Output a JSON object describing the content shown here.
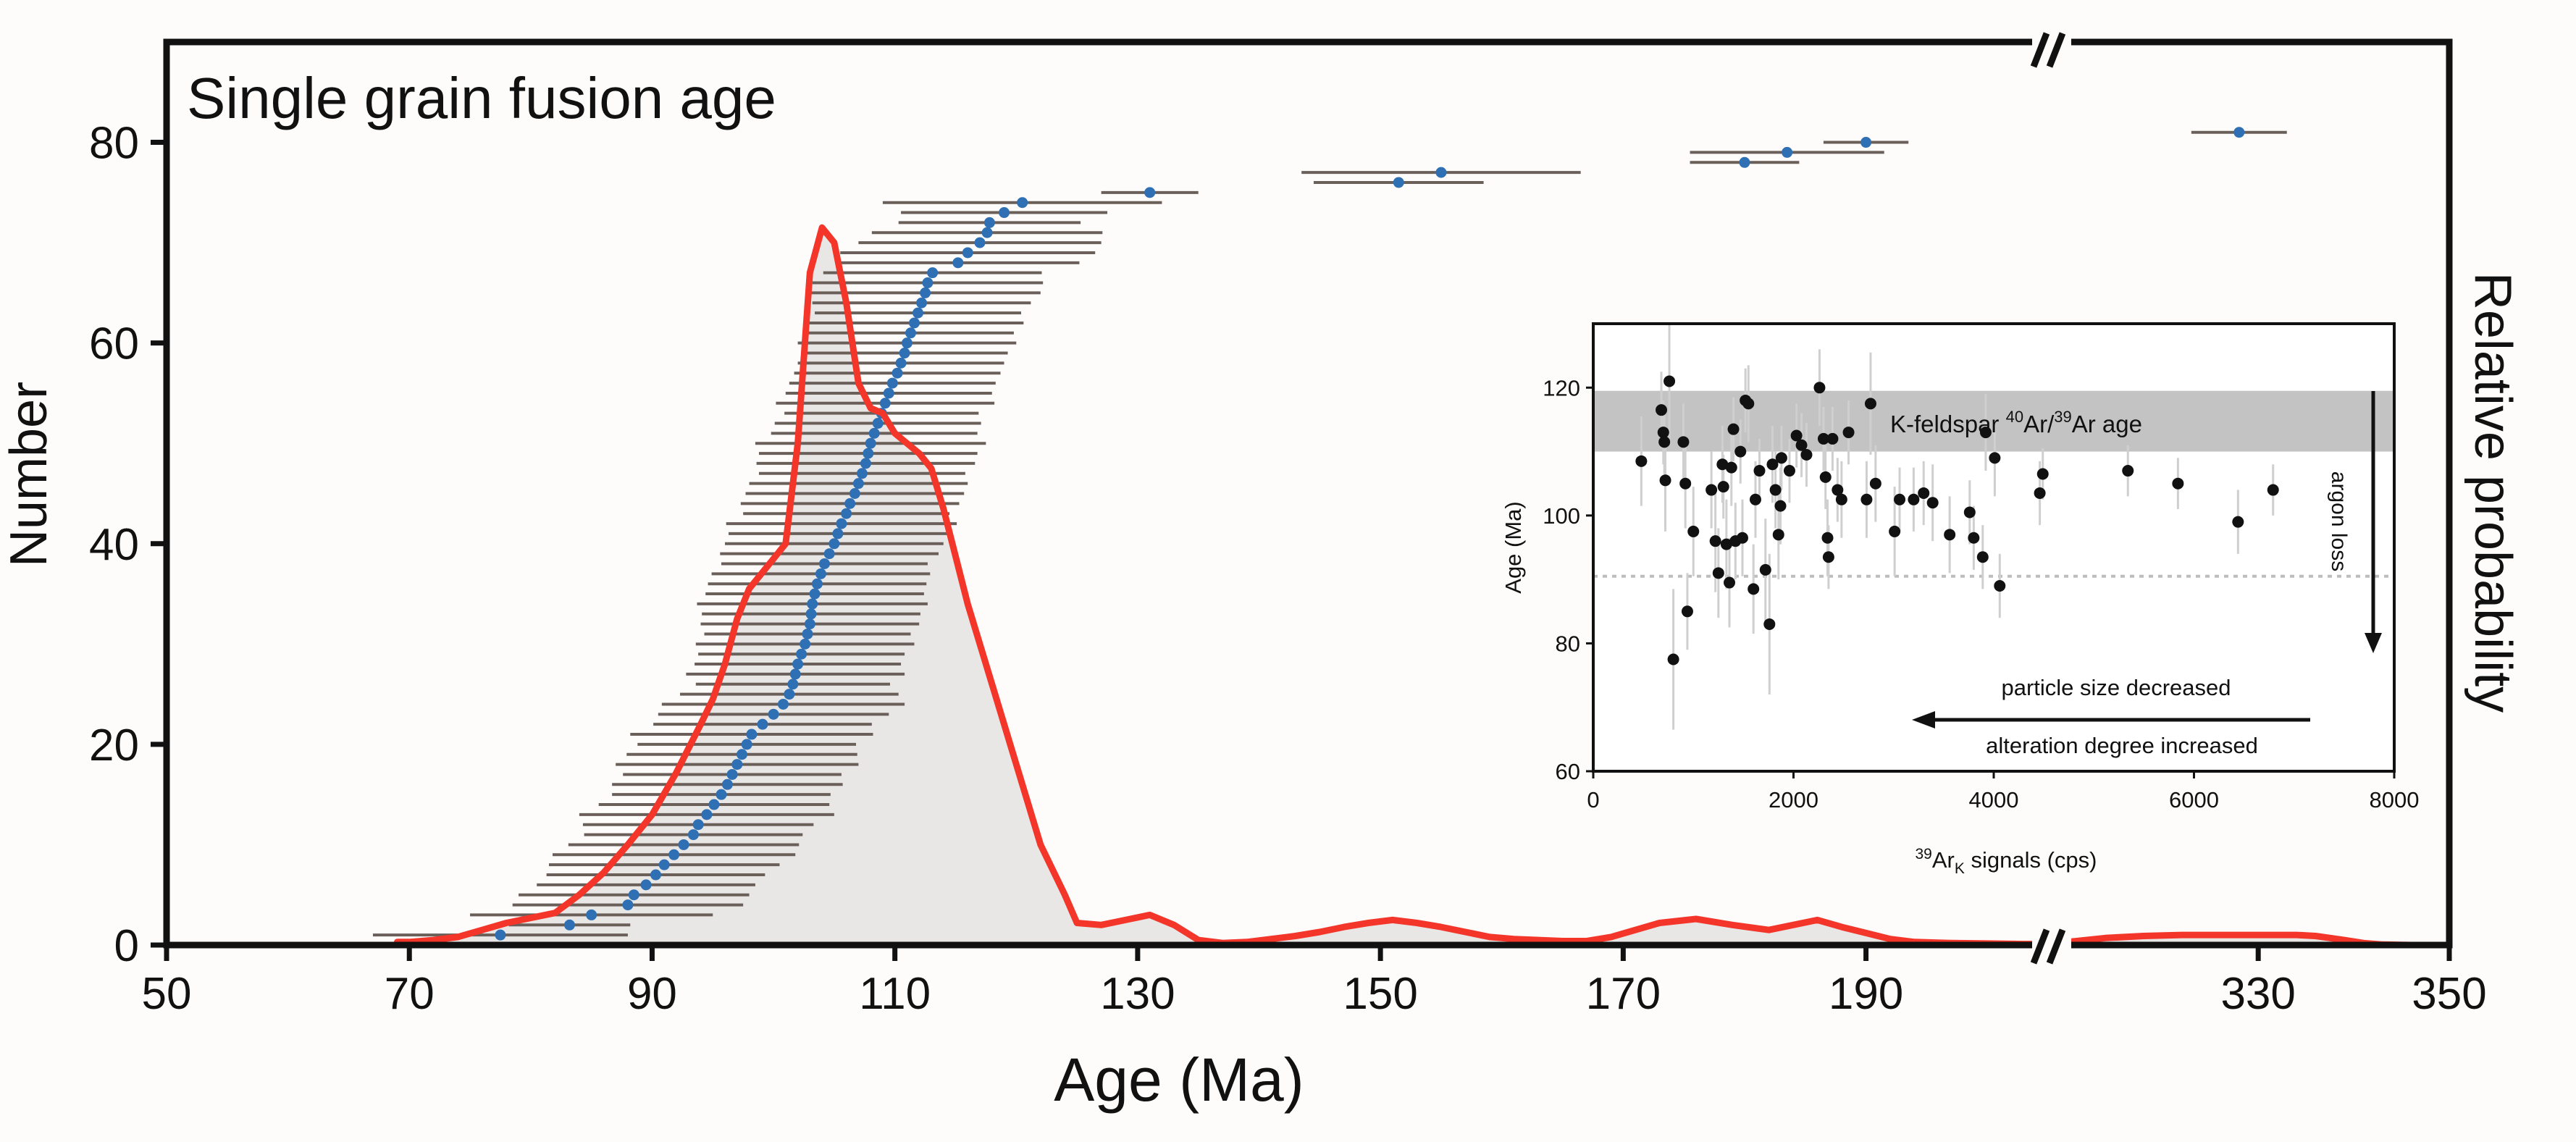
{
  "chart_data": [
    {
      "type": "scatter",
      "title": "Single grain fusion age",
      "xlabel": "Age (Ma)",
      "ylabel": "Number",
      "y2label": "Relative probability",
      "xlim_segments": [
        [
          50,
          205
        ],
        [
          308,
          350
        ]
      ],
      "axis_break_at": 205,
      "ylim": [
        0,
        90
      ],
      "xticks": [
        50,
        70,
        90,
        110,
        130,
        150,
        170,
        190,
        330,
        350
      ],
      "yticks": [
        0,
        20,
        40,
        60,
        80
      ],
      "points_age": [
        77.5,
        83.2,
        85.0,
        88.0,
        88.5,
        89.5,
        90.3,
        91.0,
        91.8,
        92.6,
        93.4,
        93.8,
        94.5,
        95.1,
        95.7,
        96.2,
        96.6,
        97.0,
        97.4,
        97.8,
        98.2,
        99.1,
        100.0,
        100.8,
        101.3,
        101.6,
        101.8,
        102.0,
        102.3,
        102.6,
        102.8,
        103.0,
        103.1,
        103.2,
        103.4,
        103.6,
        103.9,
        104.2,
        104.6,
        105.0,
        105.3,
        105.6,
        106.0,
        106.3,
        106.7,
        107.0,
        107.3,
        107.6,
        107.8,
        108.0,
        108.3,
        108.6,
        108.9,
        109.2,
        109.5,
        109.8,
        110.2,
        110.5,
        110.8,
        111.0,
        111.3,
        111.6,
        111.9,
        112.2,
        112.5,
        112.7,
        113.1,
        115.2,
        116.0,
        117.0,
        117.6,
        117.8,
        119.0,
        120.5,
        131.0,
        151.5,
        155.0,
        180.0,
        183.5,
        190.0,
        328.0
      ],
      "points_err": [
        10.5,
        5.0,
        10.0,
        9.5,
        9.5,
        9.0,
        9.0,
        9.5,
        10.0,
        9.5,
        9.0,
        9.5,
        10.5,
        9.5,
        9.0,
        9.5,
        9.0,
        10.0,
        9.5,
        9.0,
        10.0,
        9.0,
        9.5,
        10.0,
        9.0,
        8.0,
        9.0,
        8.5,
        8.5,
        9.0,
        8.5,
        9.0,
        9.0,
        9.5,
        9.0,
        9.0,
        9.0,
        8.5,
        9.0,
        9.0,
        9.0,
        9.5,
        8.5,
        9.0,
        9.0,
        9.0,
        8.5,
        9.0,
        9.0,
        9.5,
        8.5,
        8.5,
        8.0,
        9.0,
        8.5,
        8.5,
        8.5,
        8.5,
        8.5,
        9.0,
        8.5,
        9.0,
        8.5,
        9.0,
        9.5,
        9.5,
        9.0,
        10.0,
        10.5,
        10.0,
        9.5,
        7.5,
        8.5,
        11.5,
        4.0,
        7.0,
        11.5,
        4.5,
        8.0,
        3.5,
        5.0
      ],
      "probability_curve": {
        "age": [
          69,
          70,
          72,
          74,
          76,
          78,
          80,
          82,
          84,
          86,
          88,
          90,
          92,
          94,
          95,
          96,
          97,
          98,
          99,
          100,
          101,
          102,
          103,
          104,
          105,
          106,
          107,
          108,
          109,
          110,
          111,
          112,
          113,
          114,
          116,
          118,
          120,
          122,
          124,
          125,
          127,
          129,
          131,
          133,
          135,
          137,
          139,
          141,
          143,
          145,
          147,
          149,
          151,
          153,
          155,
          157,
          159,
          161,
          163,
          165,
          167,
          169,
          171,
          173,
          176,
          179,
          182,
          184,
          186,
          188,
          190,
          192,
          194,
          197,
          200,
          203,
          205,
          308,
          310,
          314,
          318,
          322,
          326,
          330,
          334,
          336,
          339,
          341,
          343,
          346,
          350
        ],
        "number": [
          0.3,
          0.3,
          0.5,
          0.8,
          1.5,
          2.2,
          2.7,
          3.2,
          5.0,
          7.2,
          10.0,
          13.0,
          17.2,
          22.0,
          24.5,
          28.0,
          32.5,
          35.5,
          37.0,
          38.5,
          40.0,
          50.0,
          67.0,
          71.5,
          70.0,
          64.0,
          56.0,
          53.5,
          53.0,
          51.0,
          50.0,
          49.0,
          47.5,
          43.5,
          34.0,
          26.0,
          18.0,
          10.0,
          5.0,
          2.2,
          2.0,
          2.5,
          3.0,
          2.0,
          0.5,
          0.2,
          0.3,
          0.6,
          0.9,
          1.3,
          1.8,
          2.2,
          2.5,
          2.2,
          1.8,
          1.3,
          0.8,
          0.6,
          0.5,
          0.4,
          0.4,
          0.8,
          1.5,
          2.2,
          2.6,
          2.0,
          1.5,
          2.0,
          2.5,
          1.8,
          1.2,
          0.6,
          0.3,
          0.2,
          0.15,
          0.1,
          0.1,
          0.1,
          0.3,
          0.7,
          0.9,
          1.0,
          1.0,
          1.0,
          1.0,
          0.9,
          0.5,
          0.2,
          0.05,
          0.0,
          0.0
        ]
      }
    },
    {
      "type": "scatter",
      "xlabel_parts": [
        "39",
        "Ar",
        "K",
        " signals (cps)"
      ],
      "ylabel": "Age (Ma)",
      "xlim": [
        0,
        8000
      ],
      "ylim": [
        60,
        130
      ],
      "xticks": [
        0,
        2000,
        4000,
        6000,
        8000
      ],
      "yticks": [
        60,
        80,
        100,
        120
      ],
      "band": {
        "range": [
          110,
          119.5
        ],
        "label_parts": [
          "K-feldspar ",
          "40",
          "Ar/",
          "39",
          "Ar age"
        ]
      },
      "dotted_line_age": 90.5,
      "annotations": [
        "argon loss",
        "particle size decreased",
        "alteration degree increased"
      ],
      "points_signal": [
        480,
        680,
        700,
        710,
        720,
        760,
        800,
        900,
        920,
        940,
        1000,
        1180,
        1220,
        1250,
        1290,
        1300,
        1330,
        1360,
        1380,
        1400,
        1420,
        1470,
        1490,
        1520,
        1550,
        1600,
        1620,
        1660,
        1720,
        1760,
        1790,
        1820,
        1850,
        1870,
        1880,
        1960,
        2030,
        2080,
        2130,
        2260,
        2300,
        2320,
        2340,
        2350,
        2390,
        2440,
        2480,
        2550,
        2730,
        2770,
        2820,
        3010,
        3060,
        3200,
        3300,
        3390,
        3560,
        3760,
        3800,
        3890,
        3920,
        4010,
        4060,
        4460,
        4490,
        5340,
        5840,
        6440,
        6790
      ],
      "points_age": [
        108.5,
        116.5,
        113.0,
        111.5,
        105.5,
        121.0,
        77.5,
        111.5,
        105.0,
        85.0,
        97.5,
        104.0,
        96.0,
        91.0,
        108.0,
        104.5,
        95.5,
        89.5,
        107.5,
        113.5,
        96.0,
        110.0,
        96.5,
        118.0,
        117.5,
        88.5,
        102.5,
        107.0,
        91.5,
        83.0,
        108.0,
        104.0,
        97.0,
        101.5,
        109.0,
        107.0,
        112.5,
        111.0,
        109.5,
        120.0,
        112.0,
        106.0,
        96.5,
        93.5,
        112.0,
        104.0,
        102.5,
        113.0,
        102.5,
        117.5,
        105.0,
        97.5,
        102.5,
        102.5,
        103.5,
        102.0,
        97.0,
        100.5,
        96.5,
        93.5,
        113.0,
        109.0,
        89.0,
        103.5,
        106.5,
        107.0,
        105.0,
        99.0,
        104.0
      ],
      "points_err": [
        7,
        6,
        5,
        5,
        8,
        9,
        11,
        6,
        7,
        6,
        7,
        6,
        8,
        7,
        6,
        5,
        7,
        7,
        6,
        5,
        6,
        5,
        6,
        5,
        6,
        7,
        6,
        5,
        8,
        11,
        6,
        6,
        7,
        6,
        5,
        5,
        5,
        5,
        5,
        6,
        5,
        5,
        6,
        5,
        5,
        5,
        6,
        5,
        6,
        8,
        6,
        7,
        5,
        5,
        5,
        6,
        6,
        5,
        5,
        5,
        6,
        6,
        5,
        5,
        4,
        4,
        4,
        5,
        4
      ]
    }
  ]
}
